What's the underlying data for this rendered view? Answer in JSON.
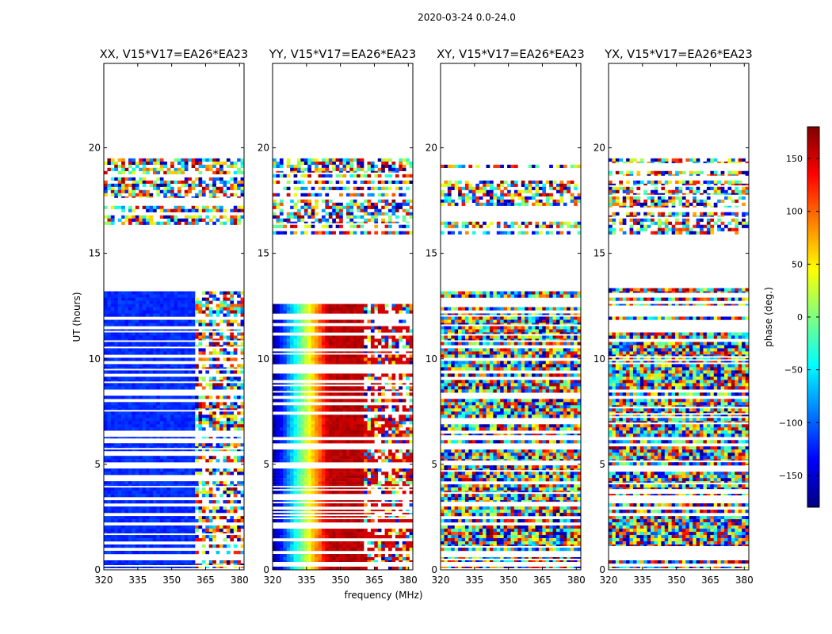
{
  "chart_data": {
    "type": "heatmap",
    "suptitle": "2020-03-24 0.0-24.0",
    "xlabel": "frequency (MHz)",
    "ylabel": "UT (hours)",
    "xlim": [
      320,
      382
    ],
    "ylim": [
      0,
      24
    ],
    "xticks": [
      320,
      335,
      350,
      365,
      380
    ],
    "xtick_labels": [
      "320",
      "335",
      "350",
      "365",
      "380"
    ],
    "yticks": [
      0,
      5,
      10,
      15,
      20
    ],
    "ytick_labels": [
      "0",
      "5",
      "10",
      "15",
      "20"
    ],
    "empty_time_ranges": [
      [
        13.4,
        15.9
      ],
      [
        19.5,
        24.0
      ]
    ],
    "rfi_frequency_range": [
      360,
      382
    ],
    "colorbar": {
      "label": "phase (deg.)",
      "range": [
        -180,
        180
      ],
      "ticks": [
        -150,
        -100,
        -50,
        0,
        50,
        100,
        150
      ],
      "tick_labels": [
        "−150",
        "−100",
        "−50",
        "0",
        "50",
        "100",
        "150"
      ],
      "colormap": "jet",
      "colors": [
        "#00007f",
        "#0000ff",
        "#007fff",
        "#00ffff",
        "#7fff7f",
        "#ffff00",
        "#ff7f00",
        "#ff0000",
        "#7f0000"
      ]
    },
    "panels": [
      {
        "title": "XX, V15*V17=EA26*EA23",
        "pattern": "smooth",
        "phase_start_deg": -120,
        "phase_end_deg": -120
      },
      {
        "title": "YY, V15*V17=EA26*EA23",
        "pattern": "smooth",
        "phase_start_deg": -170,
        "phase_end_deg": 160
      },
      {
        "title": "XY, V15*V17=EA26*EA23",
        "pattern": "noise",
        "phase_start_deg": null,
        "phase_end_deg": null
      },
      {
        "title": "YX, V15*V17=EA26*EA23",
        "pattern": "noise",
        "phase_start_deg": null,
        "phase_end_deg": null
      }
    ]
  }
}
